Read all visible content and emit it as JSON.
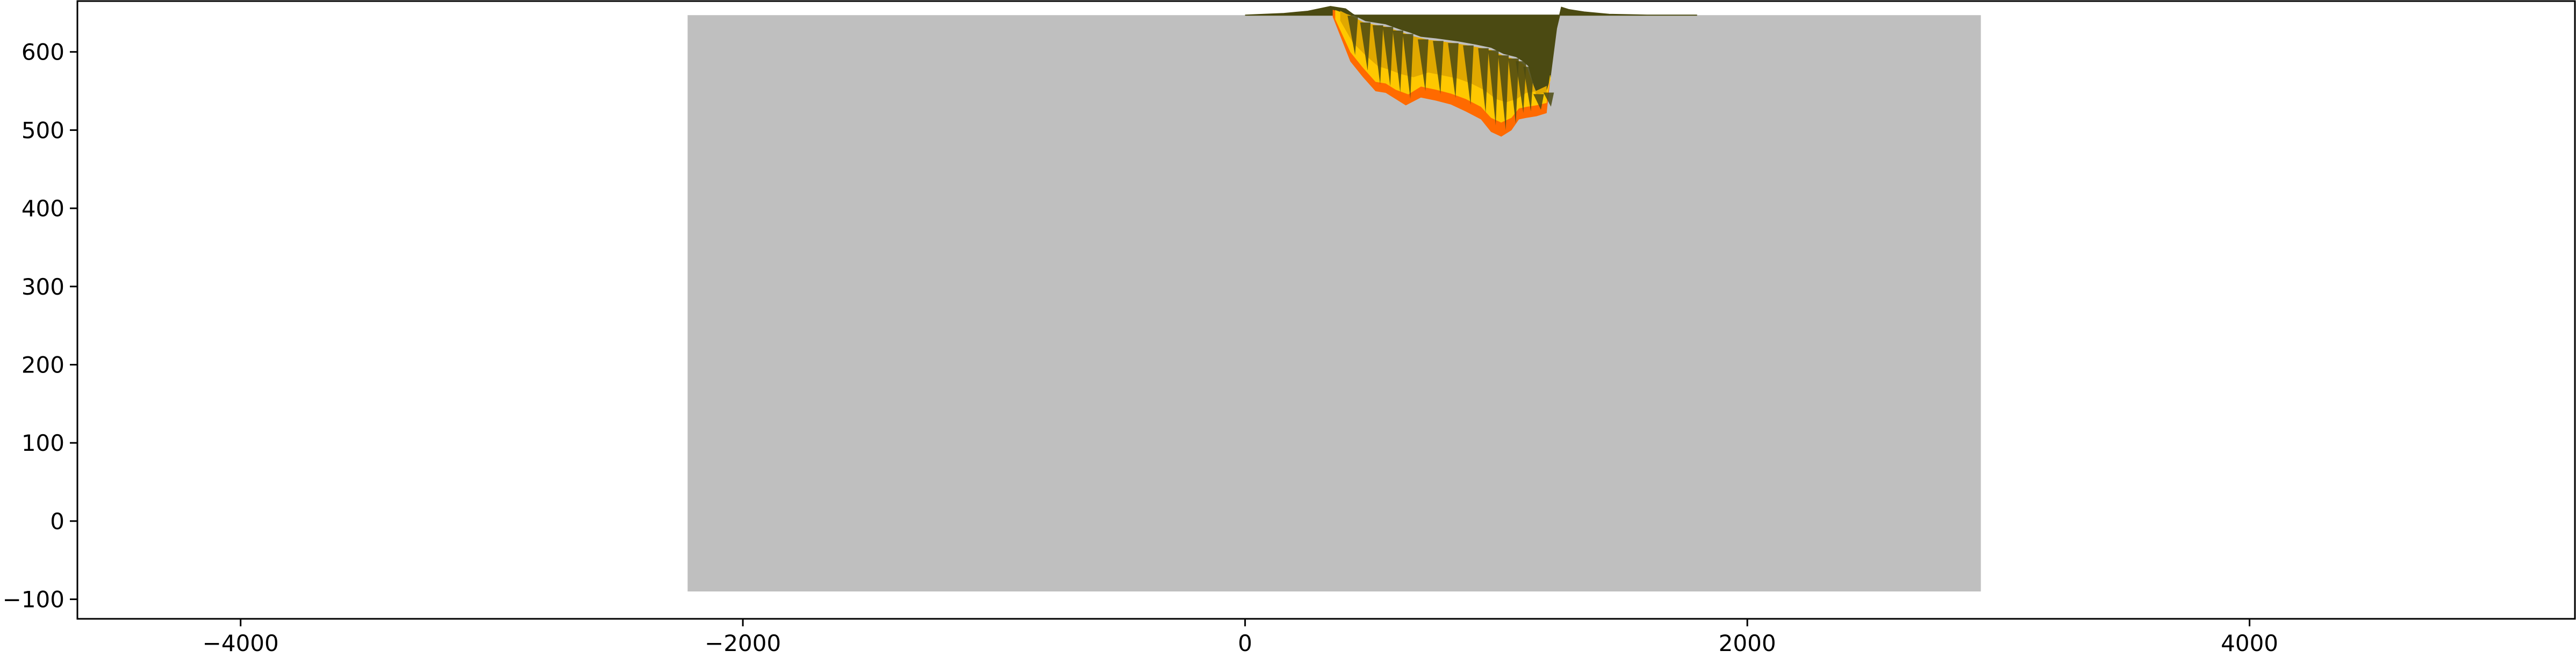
{
  "chart_data": {
    "type": "area",
    "title": "",
    "xlabel": "",
    "ylabel": "",
    "xlim": [
      -4650,
      5300
    ],
    "ylim": [
      -125,
      665
    ],
    "grid": false,
    "legend": "none",
    "x_ticks": [
      -4000,
      -2000,
      0,
      2000,
      4000
    ],
    "x_tick_labels": [
      "−4000",
      "−2000",
      "0",
      "2000",
      "4000"
    ],
    "y_ticks": [
      -100,
      0,
      100,
      200,
      300,
      400,
      500,
      600
    ],
    "y_tick_labels": [
      "−100",
      "0",
      "100",
      "200",
      "300",
      "400",
      "500",
      "600"
    ],
    "base_block": {
      "x_range": [
        -2220,
        2930
      ],
      "y_range": [
        -90,
        647
      ],
      "color": "#bfbfbf"
    },
    "terrain_profile": {
      "color": "#4b4a12",
      "x": [
        0,
        150,
        250,
        340,
        400,
        430,
        480,
        560,
        620,
        660,
        700,
        760,
        850,
        920,
        980,
        1030,
        1080,
        1110,
        1130,
        1150,
        1170,
        1200,
        1215,
        1240,
        1260,
        1290,
        1350,
        1450,
        1600,
        1800
      ],
      "y": [
        647,
        649,
        652,
        658,
        655,
        648,
        640,
        636,
        629,
        625,
        620,
        618,
        614,
        610,
        606,
        598,
        594,
        588,
        582,
        558,
        542,
        552,
        568,
        630,
        657,
        654,
        651,
        648,
        647,
        647
      ]
    },
    "excavation_layers": [
      {
        "name": "",
        "color": "#ff6a00",
        "x": [
          350,
          420,
          470,
          520,
          560,
          600,
          640,
          700,
          760,
          820,
          880,
          940,
          980,
          1020,
          1060,
          1090,
          1120,
          1160,
          1200,
          1215
        ],
        "y": [
          645,
          588,
          568,
          550,
          548,
          540,
          532,
          542,
          538,
          533,
          524,
          514,
          498,
          492,
          500,
          514,
          516,
          518,
          522,
          568
        ]
      },
      {
        "name": "",
        "color": "#ffc800",
        "x": [
          360,
          420,
          470,
          520,
          560,
          600,
          650,
          700,
          760,
          820,
          880,
          940,
          980,
          1020,
          1060,
          1090,
          1120,
          1160,
          1200,
          1215
        ],
        "y": [
          642,
          600,
          580,
          562,
          560,
          552,
          546,
          556,
          552,
          547,
          540,
          530,
          516,
          510,
          516,
          528,
          530,
          532,
          535,
          570
        ]
      },
      {
        "name": "",
        "color": "#e0a800",
        "x": [
          380,
          430,
          480,
          530,
          570,
          620,
          670,
          730,
          790,
          850,
          900,
          950,
          1000,
          1040,
          1080,
          1120,
          1160,
          1200
        ],
        "y": [
          640,
          612,
          596,
          582,
          578,
          572,
          568,
          574,
          570,
          566,
          560,
          552,
          540,
          536,
          540,
          548,
          550,
          556
        ]
      }
    ]
  }
}
